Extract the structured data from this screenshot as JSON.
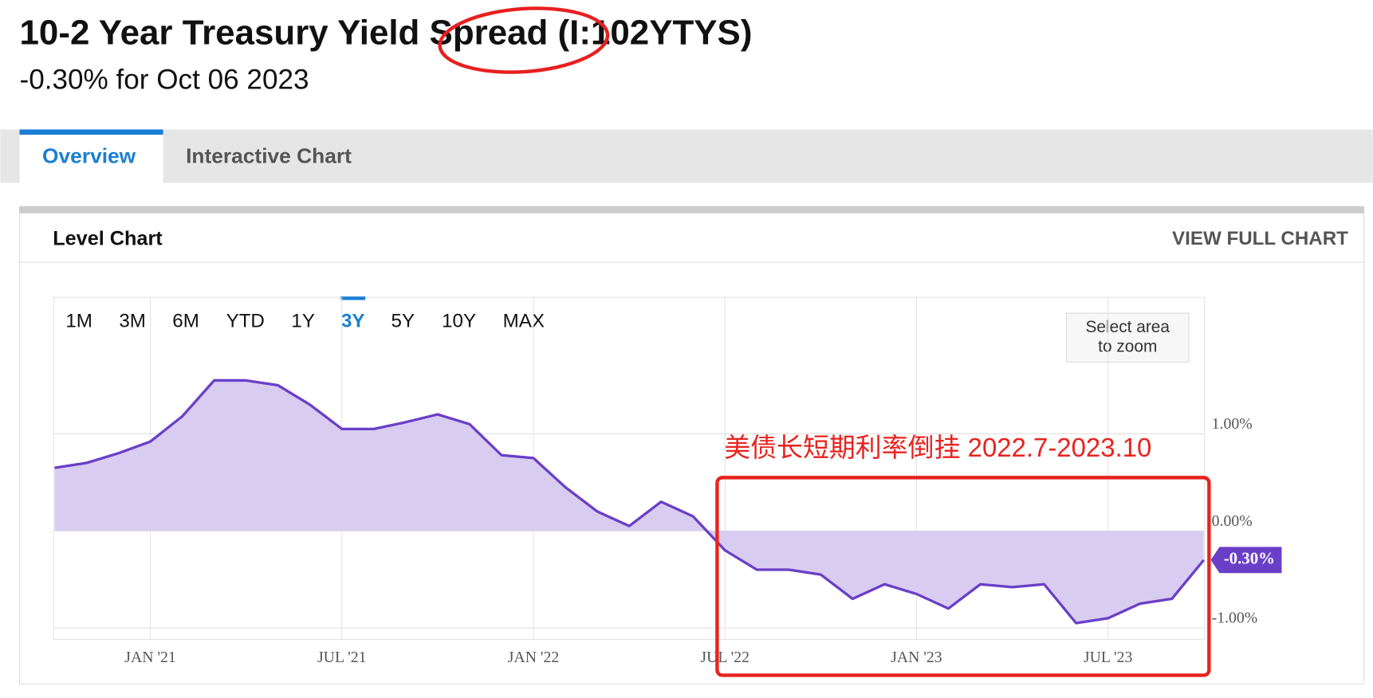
{
  "header": {
    "title": "10-2 Year Treasury Yield Spread (I:102YTYS)",
    "subtitle": "-0.30% for Oct 06 2023"
  },
  "tabs": [
    "Overview",
    "Interactive Chart"
  ],
  "active_tab": "Overview",
  "card": {
    "title": "Level Chart",
    "link": "VIEW FULL CHART"
  },
  "ranges": [
    "1M",
    "3M",
    "6M",
    "YTD",
    "1Y",
    "3Y",
    "5Y",
    "10Y",
    "MAX"
  ],
  "selected_range": "3Y",
  "zoom_hint": [
    "Select area",
    "to zoom"
  ],
  "chart_data": {
    "type": "line",
    "x": [
      "2020-10",
      "2020-11",
      "2020-12",
      "2021-01",
      "2021-02",
      "2021-03",
      "2021-04",
      "2021-05",
      "2021-06",
      "2021-07",
      "2021-08",
      "2021-09",
      "2021-10",
      "2021-11",
      "2021-12",
      "2022-01",
      "2022-02",
      "2022-03",
      "2022-04",
      "2022-05",
      "2022-06",
      "2022-07",
      "2022-08",
      "2022-09",
      "2022-10",
      "2022-11",
      "2022-12",
      "2023-01",
      "2023-02",
      "2023-03",
      "2023-04",
      "2023-05",
      "2023-06",
      "2023-07",
      "2023-08",
      "2023-09",
      "2023-10"
    ],
    "series": [
      {
        "name": "10-2 Year Treasury Yield Spread",
        "color": "#6a3fc8",
        "fill": "#d8cdf1",
        "values": [
          0.65,
          0.7,
          0.8,
          0.92,
          1.18,
          1.55,
          1.55,
          1.5,
          1.3,
          1.05,
          1.05,
          1.12,
          1.2,
          1.1,
          0.78,
          0.75,
          0.45,
          0.2,
          0.05,
          0.3,
          0.15,
          -0.2,
          -0.4,
          -0.4,
          -0.45,
          -0.7,
          -0.55,
          -0.65,
          -0.8,
          -0.55,
          -0.58,
          -0.55,
          -0.95,
          -0.9,
          -0.75,
          -0.7,
          -0.3
        ]
      }
    ],
    "last_label": "-0.30%",
    "xlim": [
      "2020-10",
      "2023-10"
    ],
    "xticks": [
      {
        "value": "2021-01",
        "label": "JAN '21"
      },
      {
        "value": "2021-07",
        "label": "JUL '21"
      },
      {
        "value": "2022-01",
        "label": "JAN '22"
      },
      {
        "value": "2022-07",
        "label": "JUL '22"
      },
      {
        "value": "2023-01",
        "label": "JAN '23"
      },
      {
        "value": "2023-07",
        "label": "JUL '23"
      }
    ],
    "ylim": [
      -1.1,
      2.0
    ],
    "yticks": [
      {
        "value": 1,
        "label": "1.00%"
      },
      {
        "value": 0,
        "label": "0.00%"
      },
      {
        "value": -1,
        "label": "-1.00%"
      }
    ],
    "grid": true,
    "annotation": "美债长短期利率倒挂 2022.7-2023.10"
  }
}
